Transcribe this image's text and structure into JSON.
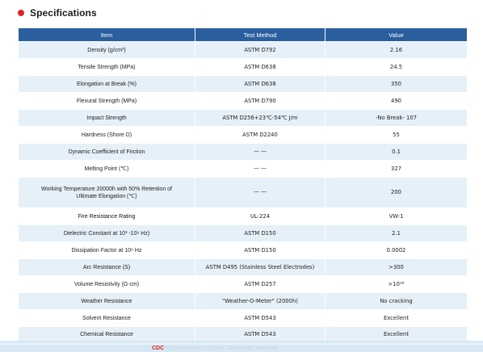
{
  "header": {
    "title": "Specifications"
  },
  "table": {
    "columns": [
      "Item",
      "Test Method",
      "Value"
    ],
    "rows": [
      {
        "item": "Density (g/cm³)",
        "method": "ASTM D792",
        "value": "2.16"
      },
      {
        "item": "Tensile Strength (MPa)",
        "method": "ASTM D638",
        "value": "24.5"
      },
      {
        "item": "Elongation at Break (%)",
        "method": "ASTM D638",
        "value": "350"
      },
      {
        "item": "Flexural Strength (MPa)",
        "method": "ASTM D790",
        "value": "490"
      },
      {
        "item": "Impact Strength",
        "method": "ASTM D256+23℃-54℃ J/m",
        "value": "-No Break- 107"
      },
      {
        "item": "Hardness (Shore D)",
        "method": "ASTM D2240",
        "value": "55"
      },
      {
        "item": "Dynamic Coefficient of Friction",
        "method": "— —",
        "value": "0.1"
      },
      {
        "item": "Melting Point (℃)",
        "method": "— —",
        "value": "327"
      },
      {
        "item": "Working Temperature 20000h with 50% Retention of Ultimate Elongation (℃)",
        "method": "— —",
        "value": "200"
      },
      {
        "item": "Fire Resistance Rating",
        "method": "UL-224",
        "value": "VW-1"
      },
      {
        "item": "Dielectric Constant at 10³ -10⁶ Hz)",
        "method": "ASTM D150",
        "value": "2.1"
      },
      {
        "item": "Dissipation Factor at 10⁶ Hz",
        "method": "ASTM D150",
        "value": "0.0002"
      },
      {
        "item": "Arc Resistance (S)",
        "method": "ASTM D495 (Stainless Steel Electrodes)",
        "value": ">300"
      },
      {
        "item": "Volume Resistivity (Ω·cm)",
        "method": "ASTM D257",
        "value": ">10¹⁸"
      },
      {
        "item": "Weather Resistance",
        "method": "\"Weather-O-Meter\" (2000h)",
        "value": "No cracking"
      },
      {
        "item": "Solvent Resistance",
        "method": "ASTM D543",
        "value": "Excellent"
      },
      {
        "item": "Chemical Resistance",
        "method": "ASTM D543",
        "value": "Excellent"
      }
    ]
  },
  "footer": {
    "brand": "CDC",
    "text": "Fluoropolymer Supplier · Advanced Materials"
  }
}
